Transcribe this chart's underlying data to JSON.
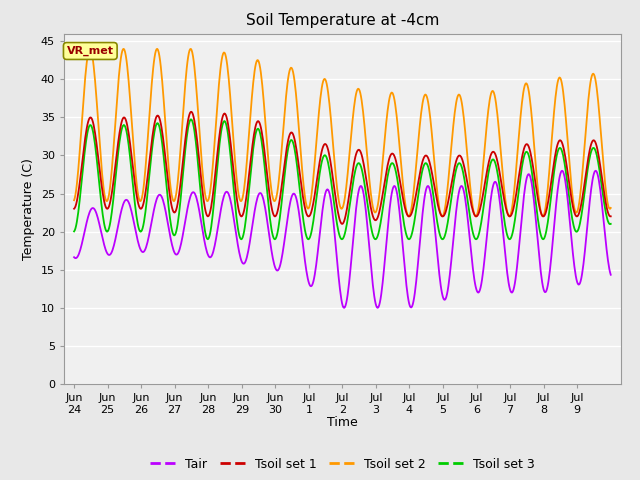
{
  "title": "Soil Temperature at -4cm",
  "xlabel": "Time",
  "ylabel": "Temperature (C)",
  "ylim": [
    0,
    46
  ],
  "yticks": [
    0,
    5,
    10,
    15,
    20,
    25,
    30,
    35,
    40,
    45
  ],
  "bg_color": "#e8e8e8",
  "plot_bg_color": "#f0f0f0",
  "colors": {
    "Tair": "#bb00ff",
    "Tsoil1": "#cc0000",
    "Tsoil2": "#ff9900",
    "Tsoil3": "#00cc00"
  },
  "legend_labels": [
    "Tair",
    "Tsoil set 1",
    "Tsoil set 2",
    "Tsoil set 3"
  ],
  "annotation_text": "VR_met",
  "annotation_color": "#990000",
  "annotation_bg": "#ffff99",
  "n_days": 16
}
